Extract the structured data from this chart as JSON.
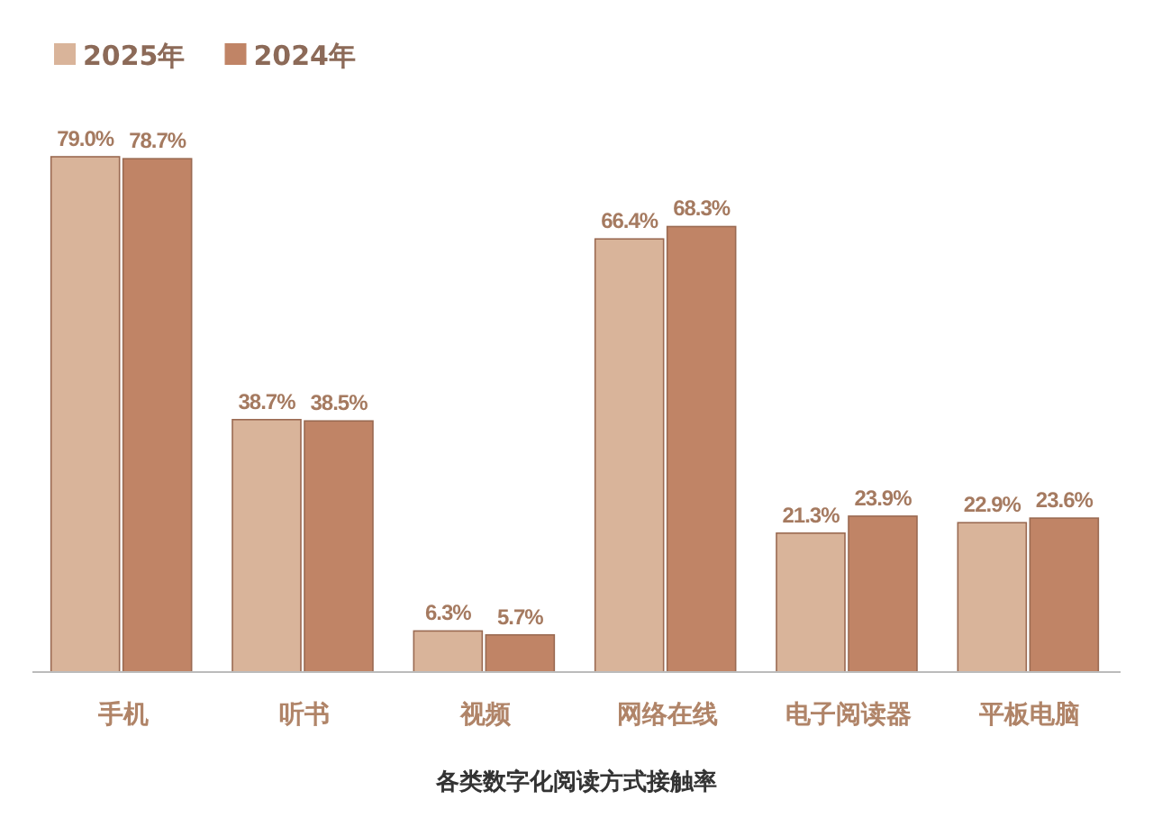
{
  "chart_data": {
    "type": "bar",
    "xlabel": "各类数字化阅读方式接触率",
    "categories": [
      "手机",
      "听书",
      "视频",
      "网络在线",
      "电子阅读器",
      "平板电脑"
    ],
    "series": [
      {
        "name": "2025年",
        "color": "#d9b49a",
        "values": [
          79.0,
          38.7,
          6.3,
          66.4,
          21.3,
          22.9
        ],
        "value_labels": [
          "79.0%",
          "38.7%",
          "6.3%",
          "66.4%",
          "21.3%",
          "22.9%"
        ]
      },
      {
        "name": "2024年",
        "color": "#c08466",
        "values": [
          78.7,
          38.5,
          5.7,
          68.3,
          23.9,
          23.6
        ],
        "value_labels": [
          "78.7%",
          "38.5%",
          "5.7%",
          "68.3%",
          "23.9%",
          "23.6%"
        ]
      }
    ],
    "legend": "top left",
    "grid": false
  }
}
